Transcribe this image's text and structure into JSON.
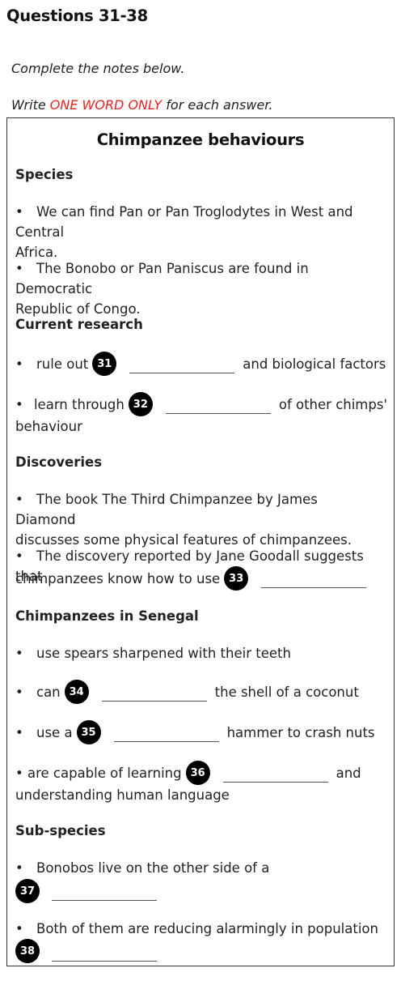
{
  "heading": "Questions 31-38",
  "instructions": {
    "line1": "Complete the notes below.",
    "line2_before": "Write ",
    "line2_highlight": "ONE WORD ONLY",
    "line2_after": " for each answer.",
    "highlight_color": "#e8201f"
  },
  "notes": {
    "title": "Chimpanzee behaviours",
    "species": {
      "heading": "Species",
      "b1_first": "We can find Pan or Pan Troglodytes in West and Central",
      "b1_cont": "Africa.",
      "b2_first": "The Bonobo or Pan Paniscus are found in Democratic",
      "b2_cont": "Republic of Congo."
    },
    "research": {
      "heading": "Current research",
      "q31_before": "rule out",
      "q31_num": "31",
      "q31_after": "and biological factors",
      "q32_before": "learn through",
      "q32_num": "32",
      "q32_after": "of other chimps'",
      "q32_cont": "behaviour"
    },
    "discoveries": {
      "heading": "Discoveries",
      "b1_first": "The book The Third Chimpanzee by James Diamond",
      "b1_cont": "discusses some physical features of chimpanzees.",
      "b2_first": "The discovery reported by Jane Goodall suggests that",
      "q33_before": "chimpanzees know how to use",
      "q33_num": "33"
    },
    "senegal": {
      "heading": "Chimpanzees in Senegal",
      "b1": "use spears sharpened with their teeth",
      "q34_before": "can",
      "q34_num": "34",
      "q34_after": "the shell of a coconut",
      "q35_before": "use a",
      "q35_num": "35",
      "q35_after": "hammer to crash nuts",
      "q36_before": "are capable of learning",
      "q36_num": "36",
      "q36_after": "and",
      "q36_cont": "understanding human language"
    },
    "subspecies": {
      "heading": "Sub-species",
      "b1": "Bonobos live on the other side of a",
      "q37_num": "37",
      "b2": "Both of them are reducing alarmingly in population",
      "q38_num": "38"
    }
  }
}
